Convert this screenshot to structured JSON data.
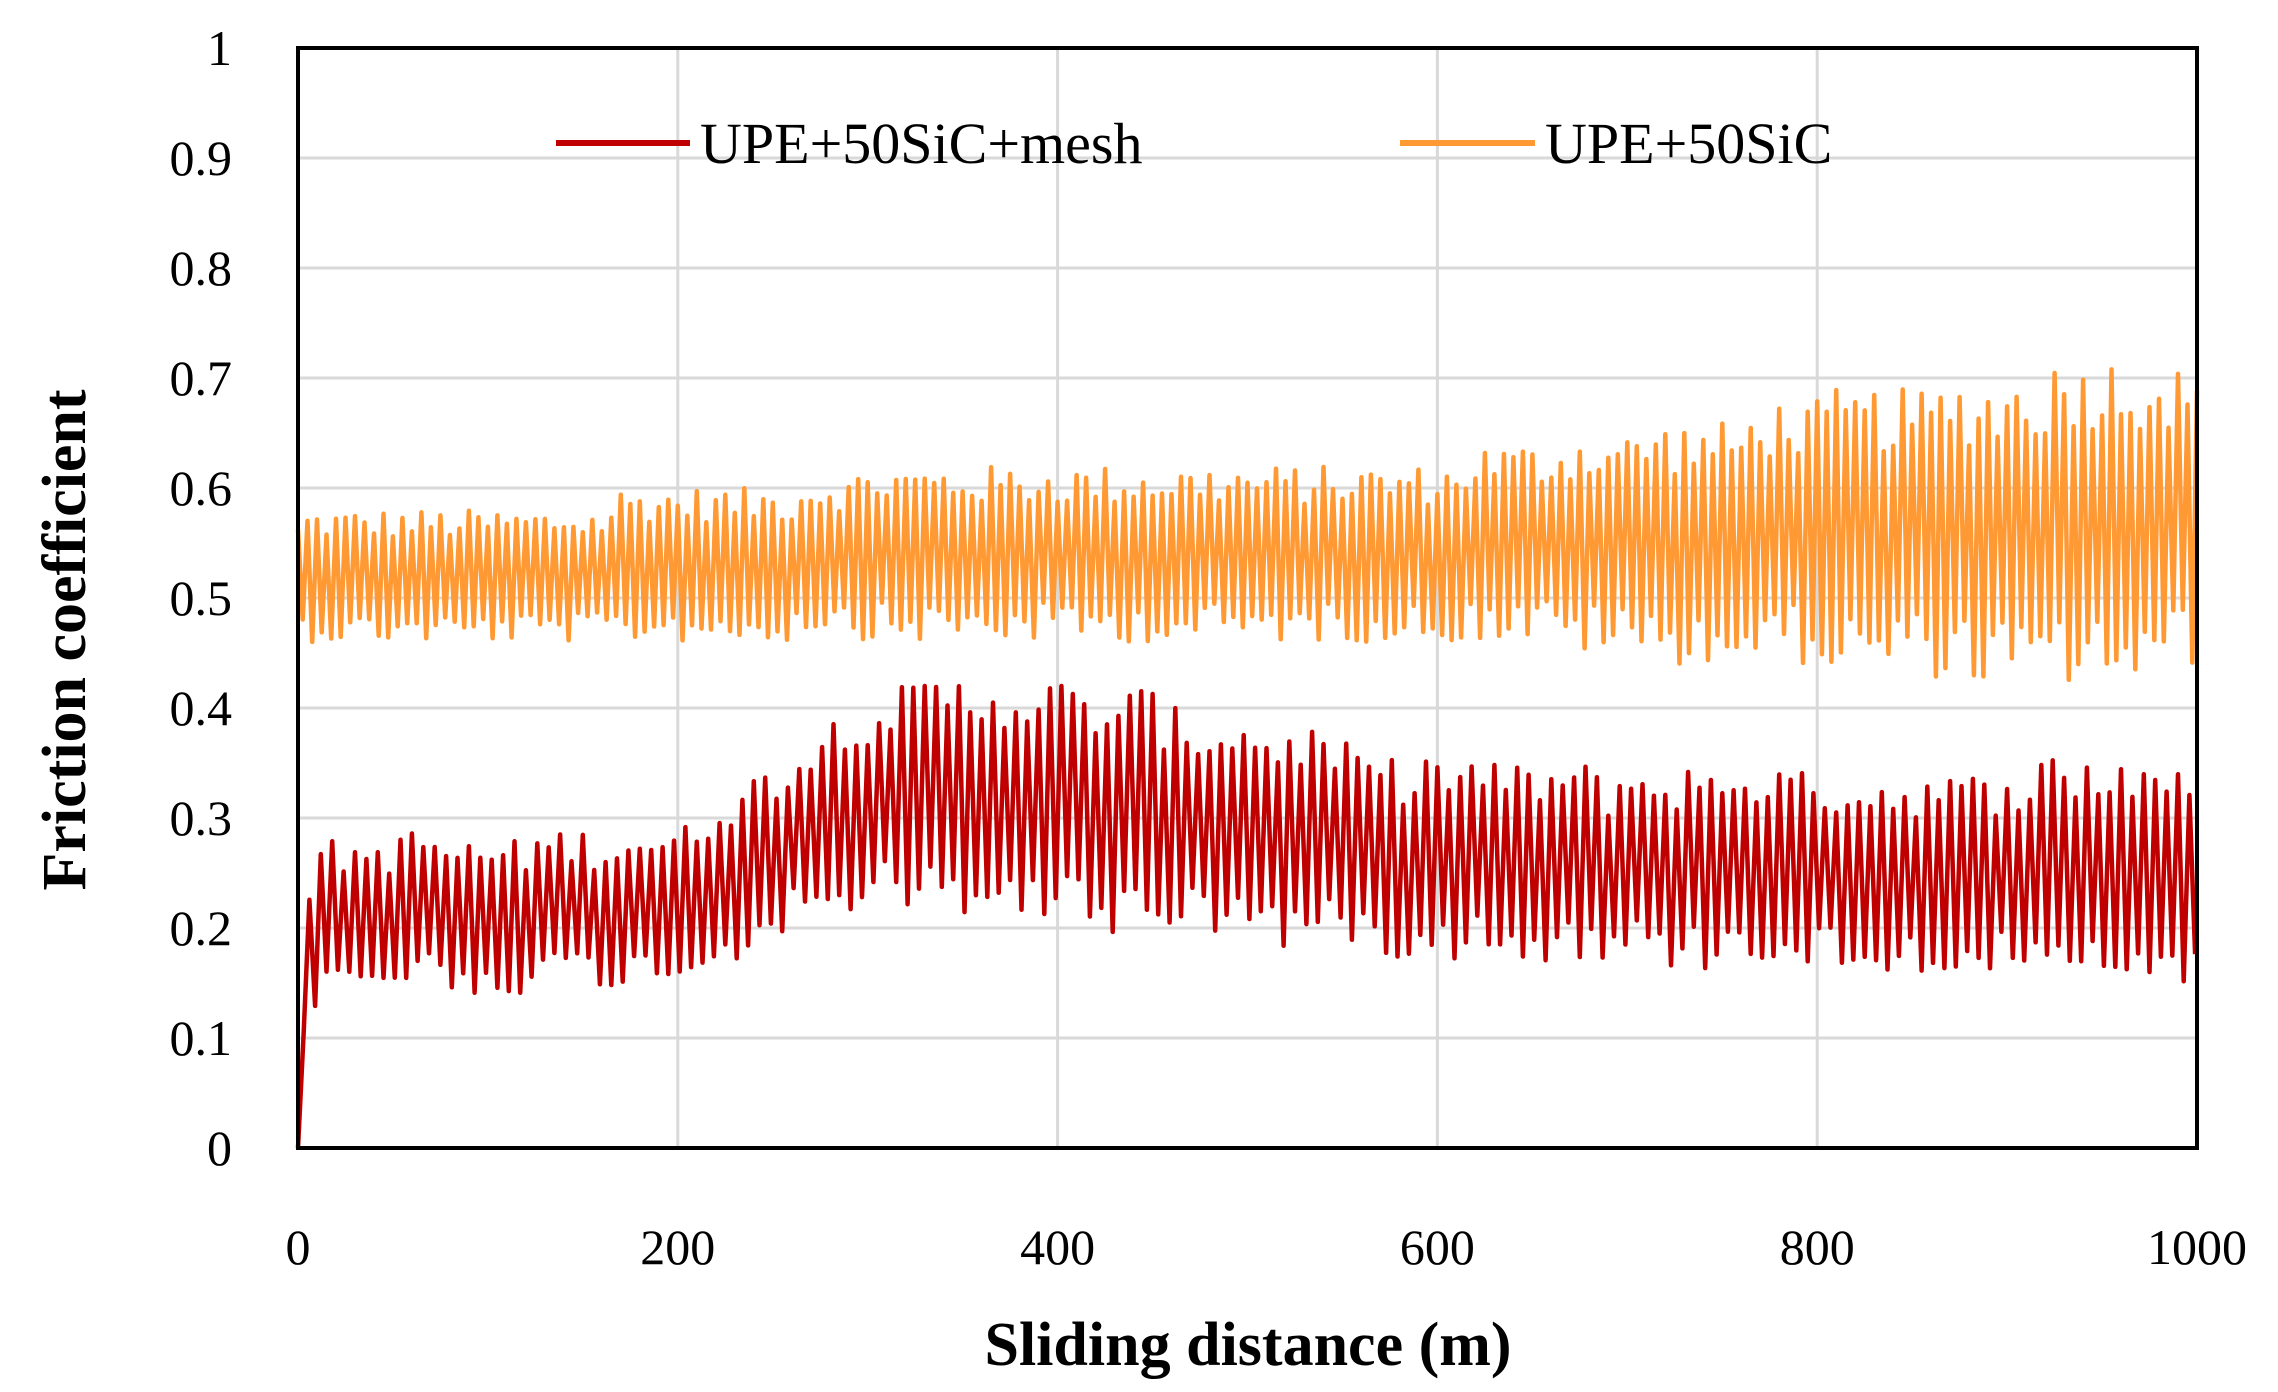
{
  "chart_data": {
    "type": "line",
    "title": "",
    "xlabel": "Sliding  distance (m)",
    "ylabel": "Friction coefficient",
    "xlim": [
      0,
      1000
    ],
    "ylim": [
      0,
      1
    ],
    "xticks": [
      0,
      200,
      400,
      600,
      800,
      1000
    ],
    "xtick_labels": [
      "0",
      "200",
      "400",
      "600",
      "800",
      "1000"
    ],
    "yticks": [
      0,
      0.1,
      0.2,
      0.3,
      0.4,
      0.5,
      0.6,
      0.7,
      0.8,
      0.9,
      1
    ],
    "ytick_labels": [
      "0",
      "0.1",
      "0.2",
      "0.3",
      "0.4",
      "0.5",
      "0.6",
      "0.7",
      "0.8",
      "0.9",
      "1"
    ],
    "grid": true,
    "legend_position": "top-center",
    "colors": {
      "series1": "#C00000",
      "series2": "#FF9933",
      "grid": "#d9d9d9",
      "axis": "#000000"
    },
    "series": [
      {
        "name": "UPE+50SiC+mesh",
        "color": "#C00000",
        "x": [
          0,
          1,
          3,
          5,
          7,
          10,
          15,
          20,
          30,
          40,
          50,
          60,
          70,
          80,
          90,
          100,
          110,
          120,
          130,
          140,
          150,
          160,
          170,
          180,
          190,
          200,
          210,
          220,
          230,
          240,
          250,
          260,
          270,
          280,
          290,
          300,
          310,
          320,
          330,
          340,
          350,
          360,
          370,
          380,
          390,
          400,
          410,
          420,
          430,
          440,
          450,
          460,
          470,
          480,
          490,
          500,
          510,
          520,
          530,
          540,
          550,
          560,
          570,
          580,
          590,
          600,
          610,
          620,
          630,
          640,
          650,
          660,
          670,
          680,
          690,
          700,
          710,
          720,
          730,
          740,
          750,
          760,
          770,
          780,
          790,
          800,
          810,
          820,
          830,
          840,
          850,
          860,
          870,
          880,
          890,
          900,
          910,
          920,
          930,
          940,
          950,
          960,
          970,
          980,
          990,
          1000
        ],
        "mean": [
          0.0,
          0.08,
          0.14,
          0.17,
          0.19,
          0.2,
          0.21,
          0.21,
          0.21,
          0.21,
          0.21,
          0.22,
          0.22,
          0.21,
          0.21,
          0.21,
          0.21,
          0.21,
          0.22,
          0.22,
          0.22,
          0.21,
          0.22,
          0.22,
          0.22,
          0.22,
          0.23,
          0.24,
          0.25,
          0.26,
          0.27,
          0.28,
          0.29,
          0.3,
          0.31,
          0.31,
          0.32,
          0.31,
          0.32,
          0.32,
          0.32,
          0.32,
          0.32,
          0.32,
          0.31,
          0.32,
          0.31,
          0.31,
          0.3,
          0.31,
          0.31,
          0.3,
          0.3,
          0.29,
          0.3,
          0.29,
          0.29,
          0.28,
          0.29,
          0.28,
          0.28,
          0.27,
          0.27,
          0.26,
          0.27,
          0.27,
          0.26,
          0.27,
          0.26,
          0.26,
          0.26,
          0.26,
          0.26,
          0.26,
          0.25,
          0.26,
          0.26,
          0.25,
          0.26,
          0.25,
          0.26,
          0.26,
          0.26,
          0.26,
          0.25,
          0.26,
          0.25,
          0.25,
          0.25,
          0.25,
          0.25,
          0.25,
          0.25,
          0.25,
          0.25,
          0.25,
          0.25,
          0.25,
          0.25,
          0.25,
          0.25,
          0.25,
          0.25,
          0.25,
          0.25,
          0.26
        ],
        "amplitude": [
          0.0,
          0.06,
          0.06,
          0.07,
          0.07,
          0.07,
          0.07,
          0.07,
          0.07,
          0.07,
          0.07,
          0.07,
          0.07,
          0.07,
          0.07,
          0.07,
          0.07,
          0.07,
          0.07,
          0.07,
          0.07,
          0.07,
          0.07,
          0.07,
          0.07,
          0.07,
          0.07,
          0.08,
          0.08,
          0.08,
          0.08,
          0.08,
          0.09,
          0.09,
          0.1,
          0.1,
          0.1,
          0.11,
          0.11,
          0.11,
          0.11,
          0.11,
          0.11,
          0.11,
          0.11,
          0.11,
          0.11,
          0.11,
          0.11,
          0.11,
          0.11,
          0.1,
          0.1,
          0.1,
          0.1,
          0.1,
          0.1,
          0.1,
          0.1,
          0.1,
          0.09,
          0.09,
          0.09,
          0.09,
          0.09,
          0.09,
          0.09,
          0.09,
          0.09,
          0.09,
          0.09,
          0.09,
          0.09,
          0.09,
          0.09,
          0.09,
          0.09,
          0.09,
          0.09,
          0.09,
          0.09,
          0.09,
          0.09,
          0.09,
          0.09,
          0.09,
          0.09,
          0.09,
          0.09,
          0.09,
          0.09,
          0.09,
          0.09,
          0.09,
          0.09,
          0.1,
          0.1,
          0.11,
          0.11,
          0.11,
          0.11,
          0.11,
          0.11,
          0.11,
          0.11,
          0.1
        ],
        "min": 0.0,
        "max": 0.42,
        "oscillation_period": 6
      },
      {
        "name": "UPE+50SiC",
        "color": "#FF9933",
        "x": [
          0,
          1,
          3,
          5,
          7,
          10,
          15,
          20,
          30,
          40,
          50,
          60,
          70,
          80,
          90,
          100,
          110,
          120,
          130,
          140,
          150,
          160,
          170,
          180,
          190,
          200,
          210,
          220,
          230,
          240,
          250,
          260,
          270,
          280,
          290,
          300,
          310,
          320,
          330,
          340,
          350,
          360,
          370,
          380,
          390,
          400,
          410,
          420,
          430,
          440,
          450,
          460,
          470,
          480,
          490,
          500,
          510,
          520,
          530,
          540,
          550,
          560,
          570,
          580,
          590,
          600,
          610,
          620,
          630,
          640,
          650,
          660,
          670,
          680,
          690,
          700,
          710,
          720,
          730,
          740,
          750,
          760,
          770,
          780,
          790,
          800,
          810,
          820,
          830,
          840,
          850,
          860,
          870,
          880,
          890,
          900,
          910,
          920,
          930,
          940,
          950,
          960,
          970,
          980,
          990,
          1000
        ],
        "mean": [
          0.52,
          0.52,
          0.52,
          0.52,
          0.52,
          0.52,
          0.52,
          0.52,
          0.52,
          0.52,
          0.52,
          0.52,
          0.52,
          0.52,
          0.52,
          0.52,
          0.52,
          0.52,
          0.52,
          0.52,
          0.52,
          0.52,
          0.53,
          0.53,
          0.53,
          0.53,
          0.53,
          0.53,
          0.53,
          0.53,
          0.53,
          0.53,
          0.54,
          0.54,
          0.54,
          0.54,
          0.54,
          0.54,
          0.54,
          0.54,
          0.54,
          0.54,
          0.54,
          0.54,
          0.54,
          0.54,
          0.54,
          0.54,
          0.54,
          0.54,
          0.54,
          0.54,
          0.54,
          0.54,
          0.54,
          0.54,
          0.54,
          0.54,
          0.54,
          0.54,
          0.54,
          0.54,
          0.54,
          0.54,
          0.54,
          0.54,
          0.54,
          0.55,
          0.55,
          0.55,
          0.55,
          0.55,
          0.55,
          0.55,
          0.55,
          0.55,
          0.55,
          0.55,
          0.55,
          0.55,
          0.55,
          0.55,
          0.56,
          0.56,
          0.56,
          0.56,
          0.56,
          0.56,
          0.56,
          0.56,
          0.56,
          0.56,
          0.56,
          0.56,
          0.56,
          0.56,
          0.56,
          0.56,
          0.57,
          0.57,
          0.57,
          0.57,
          0.57,
          0.57,
          0.57,
          0.57
        ],
        "amplitude": [
          0.05,
          0.05,
          0.06,
          0.06,
          0.06,
          0.06,
          0.06,
          0.06,
          0.06,
          0.06,
          0.06,
          0.06,
          0.06,
          0.06,
          0.06,
          0.06,
          0.06,
          0.06,
          0.06,
          0.06,
          0.06,
          0.06,
          0.07,
          0.07,
          0.07,
          0.07,
          0.07,
          0.07,
          0.07,
          0.07,
          0.07,
          0.07,
          0.07,
          0.07,
          0.07,
          0.08,
          0.08,
          0.08,
          0.08,
          0.08,
          0.08,
          0.08,
          0.08,
          0.08,
          0.08,
          0.08,
          0.08,
          0.08,
          0.08,
          0.08,
          0.08,
          0.08,
          0.08,
          0.08,
          0.08,
          0.08,
          0.08,
          0.08,
          0.08,
          0.08,
          0.08,
          0.08,
          0.08,
          0.08,
          0.08,
          0.08,
          0.08,
          0.09,
          0.09,
          0.09,
          0.09,
          0.09,
          0.1,
          0.1,
          0.1,
          0.1,
          0.11,
          0.11,
          0.11,
          0.11,
          0.11,
          0.11,
          0.12,
          0.12,
          0.12,
          0.12,
          0.13,
          0.13,
          0.13,
          0.13,
          0.13,
          0.13,
          0.14,
          0.14,
          0.14,
          0.14,
          0.15,
          0.15,
          0.15,
          0.15,
          0.15,
          0.15,
          0.15,
          0.15,
          0.14,
          0.13
        ],
        "min": 0.41,
        "max": 0.73,
        "oscillation_period": 5
      }
    ]
  }
}
